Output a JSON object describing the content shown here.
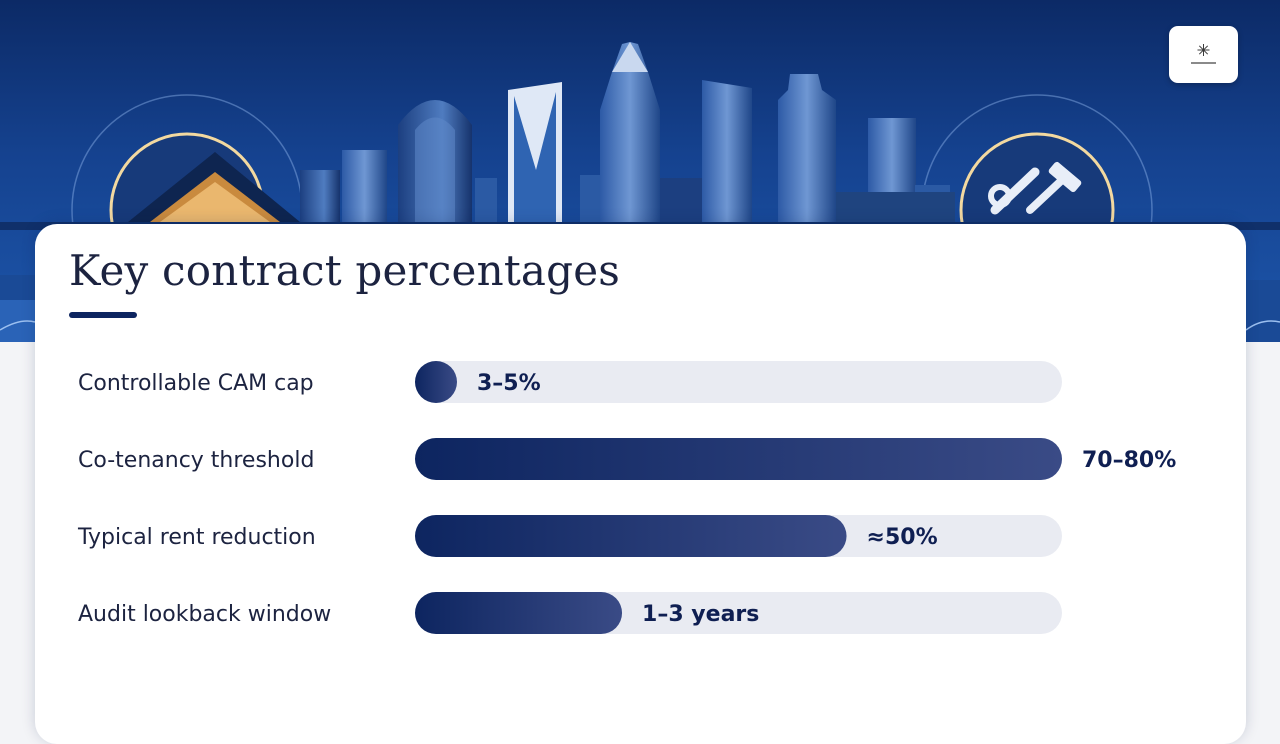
{
  "slide": {
    "title": "Key contract percentages"
  },
  "colors": {
    "bar_dark": "#0d2560",
    "bar_light": "#3a4b86",
    "track": "#e9ebf2",
    "value_text": "#0f1f52"
  },
  "icons": [
    "skyline-illustration",
    "storefront-icon",
    "wrench-hammer-icon",
    "logo-mark"
  ],
  "chart_data": {
    "type": "bar",
    "orientation": "horizontal",
    "xlim": [
      0,
      100
    ],
    "categories": [
      "Controllable CAM cap",
      "Co-tenancy threshold",
      "Typical rent reduction",
      "Audit lookback window"
    ],
    "values": [
      6,
      100,
      66.7,
      32
    ],
    "value_labels": [
      "3–5%",
      "70–80%",
      "≈50%",
      "1–3 years"
    ],
    "grid": false,
    "legend": "none"
  }
}
